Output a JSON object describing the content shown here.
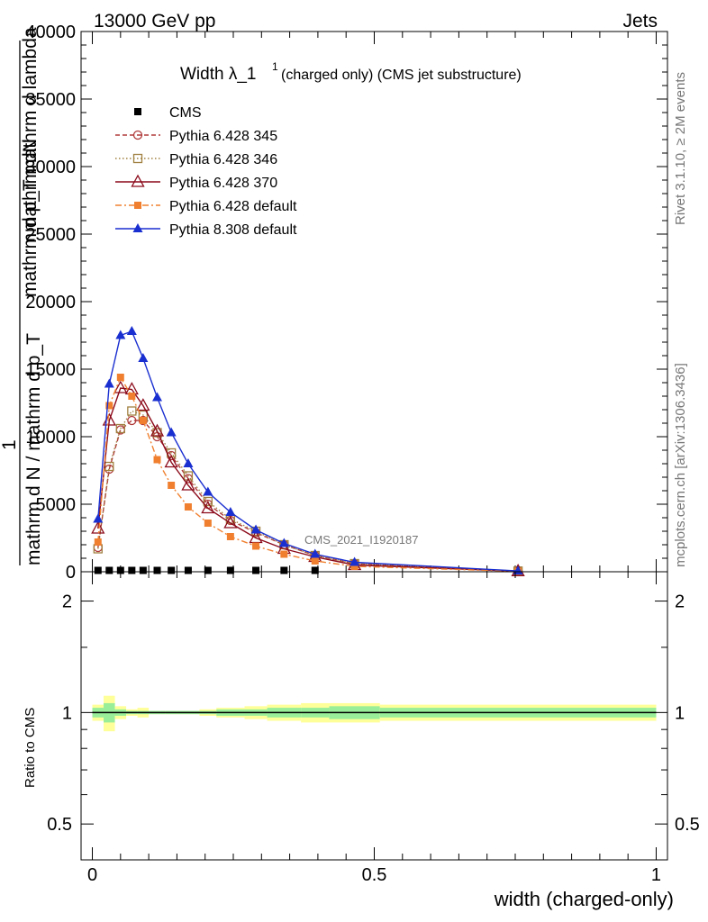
{
  "header": {
    "left": "13000 GeV pp",
    "right": "Jets"
  },
  "side_text": {
    "rivet": "Rivet 3.1.10, ≥ 2M events",
    "source": "mcplots.cern.ch [arXiv:1306.3436]"
  },
  "watermark": "CMS_2021_I1920187",
  "chart_data": [
    {
      "type": "line",
      "title_main": "Width λ_1",
      "title_sup": "1",
      "title_sub": "(charged only) (CMS jet substructure)",
      "ylabel_top": "mathrm dN",
      "ylabel_mid": "mathrm d p_T mathrm d lambda",
      "ylabel_frac_num": "1",
      "ylabel_frac_den": "mathrm d N / mathrm d p_T",
      "xlim": [
        -0.02,
        1.02
      ],
      "ylim": [
        0,
        40000
      ],
      "yticks": [
        0,
        5000,
        10000,
        15000,
        20000,
        25000,
        30000,
        35000,
        40000
      ],
      "ytick_labels": [
        "0",
        "5000",
        "10000",
        "15000",
        "20000",
        "25000",
        "30000",
        "35000",
        "40000"
      ],
      "legend_position": "top-left",
      "series": [
        {
          "name": "CMS",
          "color": "#000000",
          "marker": "square-filled",
          "line": "none",
          "x": [
            0.01,
            0.03,
            0.05,
            0.07,
            0.09,
            0.115,
            0.14,
            0.17,
            0.205,
            0.245,
            0.29,
            0.34,
            0.395,
            0.465,
            0.755
          ],
          "y": [
            100,
            100,
            100,
            100,
            100,
            100,
            100,
            100,
            100,
            100,
            100,
            100,
            100,
            0,
            0
          ]
        },
        {
          "name": "Pythia 6.428 345",
          "color": "#b03a3a",
          "marker": "circle-open",
          "line": "dashed",
          "x": [
            0.01,
            0.03,
            0.05,
            0.07,
            0.09,
            0.115,
            0.14,
            0.17,
            0.205,
            0.245,
            0.29,
            0.34,
            0.395,
            0.465,
            0.755
          ],
          "y": [
            1800,
            7600,
            10500,
            11200,
            11200,
            10000,
            8600,
            6900,
            5000,
            3800,
            2900,
            2000,
            1200,
            600,
            50
          ]
        },
        {
          "name": "Pythia 6.428 346",
          "color": "#a08040",
          "marker": "square-open",
          "line": "dotted",
          "x": [
            0.01,
            0.03,
            0.05,
            0.07,
            0.09,
            0.115,
            0.14,
            0.17,
            0.205,
            0.245,
            0.29,
            0.34,
            0.395,
            0.465,
            0.755
          ],
          "y": [
            1700,
            7800,
            10600,
            11900,
            11600,
            10300,
            8800,
            7100,
            5200,
            3900,
            3000,
            2000,
            1200,
            600,
            50
          ]
        },
        {
          "name": "Pythia 6.428 370",
          "color": "#8b0a1a",
          "marker": "triangle-open",
          "line": "solid",
          "x": [
            0.01,
            0.03,
            0.05,
            0.07,
            0.09,
            0.115,
            0.14,
            0.17,
            0.205,
            0.245,
            0.29,
            0.34,
            0.395,
            0.465,
            0.755
          ],
          "y": [
            3200,
            11200,
            13600,
            13500,
            12300,
            10400,
            8100,
            6400,
            4700,
            3600,
            2500,
            1700,
            1100,
            500,
            40
          ]
        },
        {
          "name": "Pythia 6.428 default",
          "color": "#f08030",
          "marker": "square-filled-small",
          "line": "dashdot",
          "x": [
            0.01,
            0.03,
            0.05,
            0.07,
            0.09,
            0.115,
            0.14,
            0.17,
            0.205,
            0.245,
            0.29,
            0.34,
            0.395,
            0.465,
            0.755
          ],
          "y": [
            2200,
            12300,
            14400,
            13000,
            11200,
            8300,
            6400,
            4800,
            3600,
            2600,
            1900,
            1300,
            800,
            400,
            30
          ]
        },
        {
          "name": "Pythia 8.308 default",
          "color": "#1a2fd0",
          "marker": "triangle-filled",
          "line": "solid",
          "x": [
            0.01,
            0.03,
            0.05,
            0.07,
            0.09,
            0.115,
            0.14,
            0.17,
            0.205,
            0.245,
            0.29,
            0.34,
            0.395,
            0.465,
            0.755
          ],
          "y": [
            3900,
            13900,
            17500,
            17800,
            15800,
            12900,
            10300,
            8000,
            5900,
            4400,
            3100,
            2100,
            1300,
            700,
            60
          ]
        }
      ]
    },
    {
      "type": "line",
      "ylabel": "Ratio to CMS",
      "xlabel": "width (charged-only)",
      "xlim": [
        -0.02,
        1.02
      ],
      "ylim": [
        0.4,
        2.4
      ],
      "log_y": true,
      "yticks": [
        0.5,
        1,
        2
      ],
      "ytick_labels": [
        "0.5",
        "1",
        "2"
      ],
      "xticks": [
        0,
        0.5,
        1
      ],
      "xtick_labels": [
        "0",
        "0.5",
        "1"
      ],
      "reference_line": 1,
      "bands": [
        {
          "x0": 0.0,
          "x1": 0.02,
          "inner": 0.03,
          "outer": 0.05
        },
        {
          "x0": 0.02,
          "x1": 0.04,
          "inner": 0.06,
          "outer": 0.11
        },
        {
          "x0": 0.04,
          "x1": 0.06,
          "inner": 0.02,
          "outer": 0.04
        },
        {
          "x0": 0.06,
          "x1": 0.08,
          "inner": 0.01,
          "outer": 0.02
        },
        {
          "x0": 0.08,
          "x1": 0.1,
          "inner": 0.01,
          "outer": 0.03
        },
        {
          "x0": 0.1,
          "x1": 0.13,
          "inner": 0.01,
          "outer": 0.01
        },
        {
          "x0": 0.13,
          "x1": 0.15,
          "inner": 0.01,
          "outer": 0.01
        },
        {
          "x0": 0.15,
          "x1": 0.19,
          "inner": 0.01,
          "outer": 0.01
        },
        {
          "x0": 0.19,
          "x1": 0.22,
          "inner": 0.01,
          "outer": 0.02
        },
        {
          "x0": 0.22,
          "x1": 0.27,
          "inner": 0.02,
          "outer": 0.03
        },
        {
          "x0": 0.27,
          "x1": 0.31,
          "inner": 0.02,
          "outer": 0.04
        },
        {
          "x0": 0.31,
          "x1": 0.37,
          "inner": 0.03,
          "outer": 0.05
        },
        {
          "x0": 0.37,
          "x1": 0.42,
          "inner": 0.03,
          "outer": 0.06
        },
        {
          "x0": 0.42,
          "x1": 0.51,
          "inner": 0.04,
          "outer": 0.06
        },
        {
          "x0": 0.51,
          "x1": 1.0,
          "inner": 0.03,
          "outer": 0.05
        }
      ]
    }
  ]
}
